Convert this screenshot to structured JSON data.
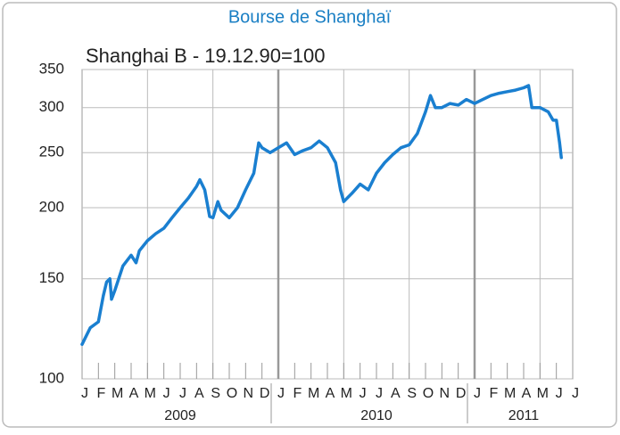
{
  "chart_data": {
    "type": "line",
    "title": "Bourse de Shanghaï",
    "subtitle": "Shanghai B - 19.12.90=100",
    "log_scale": true,
    "grid": true,
    "color": "#1a7fd0",
    "ylim": [
      100,
      350
    ],
    "yticks": [
      100,
      150,
      200,
      250,
      300,
      350
    ],
    "xlim": [
      0,
      30
    ],
    "xticks": [
      {
        "value": 0,
        "label": "J"
      },
      {
        "value": 1,
        "label": "F"
      },
      {
        "value": 2,
        "label": "M"
      },
      {
        "value": 3,
        "label": "A"
      },
      {
        "value": 4,
        "label": "M"
      },
      {
        "value": 5,
        "label": "J"
      },
      {
        "value": 6,
        "label": "J"
      },
      {
        "value": 7,
        "label": "A"
      },
      {
        "value": 8,
        "label": "S"
      },
      {
        "value": 9,
        "label": "O"
      },
      {
        "value": 10,
        "label": "N"
      },
      {
        "value": 11,
        "label": "D"
      },
      {
        "value": 12,
        "label": "J"
      },
      {
        "value": 13,
        "label": "F"
      },
      {
        "value": 14,
        "label": "M"
      },
      {
        "value": 15,
        "label": "A"
      },
      {
        "value": 16,
        "label": "M"
      },
      {
        "value": 17,
        "label": "J"
      },
      {
        "value": 18,
        "label": "J"
      },
      {
        "value": 19,
        "label": "A"
      },
      {
        "value": 20,
        "label": "S"
      },
      {
        "value": 21,
        "label": "O"
      },
      {
        "value": 22,
        "label": "N"
      },
      {
        "value": 23,
        "label": "D"
      },
      {
        "value": 24,
        "label": "J"
      },
      {
        "value": 25,
        "label": "F"
      },
      {
        "value": 26,
        "label": "M"
      },
      {
        "value": 27,
        "label": "A"
      },
      {
        "value": 28,
        "label": "M"
      },
      {
        "value": 29,
        "label": "J"
      },
      {
        "value": 30,
        "label": "J"
      }
    ],
    "xgrid": [
      4,
      8,
      12,
      16,
      20,
      24,
      28
    ],
    "years": [
      {
        "value": 0,
        "label": "2009"
      },
      {
        "value": 12,
        "label": "2010"
      },
      {
        "value": 24,
        "label": "2011"
      }
    ],
    "x": [
      0,
      0.5,
      1,
      1.3,
      1.5,
      1.7,
      1.8,
      2,
      2.5,
      3,
      3.3,
      3.5,
      4,
      4.5,
      5,
      5.5,
      6,
      6.5,
      7,
      7.2,
      7.5,
      7.8,
      8,
      8.3,
      8.5,
      9,
      9.5,
      10,
      10.5,
      10.8,
      11,
      11.5,
      12,
      12.5,
      13,
      13.5,
      14,
      14.5,
      15,
      15.5,
      15.8,
      16,
      16.5,
      17,
      17.5,
      18,
      18.5,
      19,
      19.5,
      20,
      20.5,
      21,
      21.3,
      21.6,
      22,
      22.5,
      23,
      23.5,
      24,
      24.5,
      25,
      25.5,
      26,
      26.5,
      27,
      27.3,
      27.5,
      28,
      28.5,
      28.8,
      29,
      29.2,
      29.3
    ],
    "values": [
      115,
      123,
      126,
      140,
      148,
      150,
      138,
      143,
      158,
      165,
      160,
      168,
      175,
      180,
      184,
      192,
      200,
      208,
      218,
      224,
      215,
      193,
      192,
      205,
      198,
      192,
      200,
      215,
      230,
      260,
      255,
      250,
      255,
      260,
      248,
      252,
      255,
      262,
      255,
      240,
      215,
      205,
      212,
      220,
      215,
      230,
      240,
      248,
      255,
      258,
      270,
      295,
      315,
      300,
      300,
      305,
      303,
      310,
      305,
      310,
      315,
      318,
      320,
      322,
      325,
      328,
      300,
      300,
      295,
      285,
      285,
      260,
      245
    ]
  }
}
